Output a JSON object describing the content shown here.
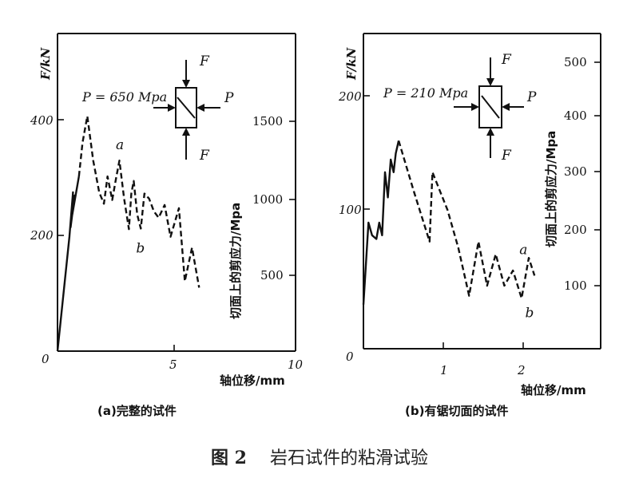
{
  "chart_data": [
    {
      "type": "line",
      "panel_label": "(a)完整的试件",
      "xlabel": "轴位移/mm",
      "ylabel": "F/kN",
      "y2label": "切面上的剪应力/Mpa",
      "pressure_label": "P = 650 Mpa",
      "x_ticks": [
        "0",
        "5",
        "10"
      ],
      "y_ticks": [
        "0",
        "200",
        "400"
      ],
      "y2_ticks": [
        "500",
        "1000",
        "1500"
      ],
      "xlim": [
        0,
        10
      ],
      "ylim": [
        0,
        500
      ],
      "annotations": [
        {
          "text": "a",
          "x": 2.45,
          "y": 318
        },
        {
          "text": "b",
          "x": 3.3,
          "y": 155
        }
      ],
      "series": [
        {
          "style": "solid",
          "x": [
            0,
            0.5,
            0.65,
            0.55,
            0.72,
            0.62,
            0.9
          ],
          "y": [
            0,
            180,
            250,
            195,
            245,
            215,
            275
          ]
        },
        {
          "style": "dashed",
          "x": [
            0.9,
            1.05,
            1.25,
            1.5,
            1.75,
            1.95,
            2.1,
            2.3,
            2.45,
            2.6,
            2.8,
            3.0,
            3.1,
            3.2,
            3.35,
            3.5,
            3.65,
            3.85,
            4.05,
            4.25,
            4.5,
            4.75,
            5.1,
            5.35,
            5.65,
            5.95
          ],
          "y": [
            275,
            328,
            370,
            300,
            250,
            232,
            275,
            238,
            270,
            300,
            240,
            192,
            248,
            268,
            215,
            193,
            248,
            240,
            220,
            210,
            230,
            180,
            225,
            110,
            163,
            100
          ]
        }
      ]
    },
    {
      "type": "line",
      "panel_label": "(b)有锯切面的试件",
      "xlabel": "轴位移/mm",
      "ylabel": "F/kN",
      "y2label": "切面上的剪应力/Mpa",
      "pressure_label": "P = 210 Mpa",
      "x_ticks": [
        "0",
        "1",
        "2"
      ],
      "y_ticks": [
        "0",
        "100",
        "200"
      ],
      "y2_ticks": [
        "100",
        "200",
        "300",
        "400",
        "500"
      ],
      "xlim": [
        0,
        3.3
      ],
      "ylim": [
        0,
        250
      ],
      "annotations": [
        {
          "text": "a",
          "x": 2.17,
          "y": 75
        },
        {
          "text": "b",
          "x": 2.25,
          "y": 25
        }
      ],
      "series": [
        {
          "style": "solid",
          "x": [
            0,
            0.07,
            0.12,
            0.18,
            0.22,
            0.26,
            0.3,
            0.34,
            0.38,
            0.42,
            0.45,
            0.49
          ],
          "y": [
            35,
            100,
            90,
            87,
            100,
            90,
            140,
            120,
            150,
            140,
            155,
            165
          ]
        },
        {
          "style": "dashed",
          "x": [
            0.49,
            0.7,
            0.92,
            0.96,
            1.17,
            1.32,
            1.47,
            1.6,
            1.72,
            1.84,
            1.96,
            2.08,
            2.2,
            2.3,
            2.38
          ],
          "y": [
            165,
            125,
            85,
            140,
            110,
            80,
            42,
            85,
            50,
            75,
            50,
            62,
            40,
            72,
            58
          ]
        }
      ]
    }
  ],
  "caption": {
    "figure_number": "图 2",
    "text": "岩石试件的粘滑试验"
  },
  "inset": {
    "label_F_top": "F",
    "label_F_bottom": "F",
    "label_P": "P"
  }
}
